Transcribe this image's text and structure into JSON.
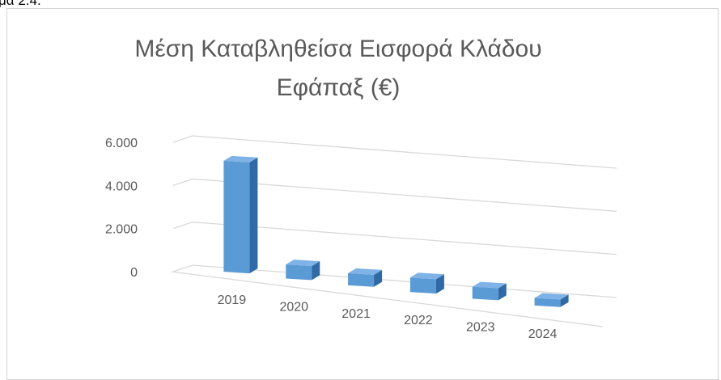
{
  "caption": "μα 2.4.",
  "chart_data": {
    "type": "bar",
    "three_d": true,
    "title_lines": [
      "Μέση Καταβληθείσα  Εισφορά Κλάδου",
      "Εφάπαξ (€)"
    ],
    "categories": [
      "2019",
      "2020",
      "2021",
      "2022",
      "2023",
      "2024"
    ],
    "values": [
      5150,
      650,
      560,
      670,
      560,
      350
    ],
    "ytick_labels": [
      "0",
      "2.000",
      "4.000",
      "6.000"
    ],
    "ylim": [
      0,
      6000
    ],
    "grid": true,
    "legend": "none",
    "colors": {
      "bar_front": "#5b9bd5",
      "bar_side": "#2f6aa6",
      "bar_top": "#7fb2e6",
      "text": "#595959",
      "title": "#595959",
      "grid": "#d9d9d9"
    }
  }
}
